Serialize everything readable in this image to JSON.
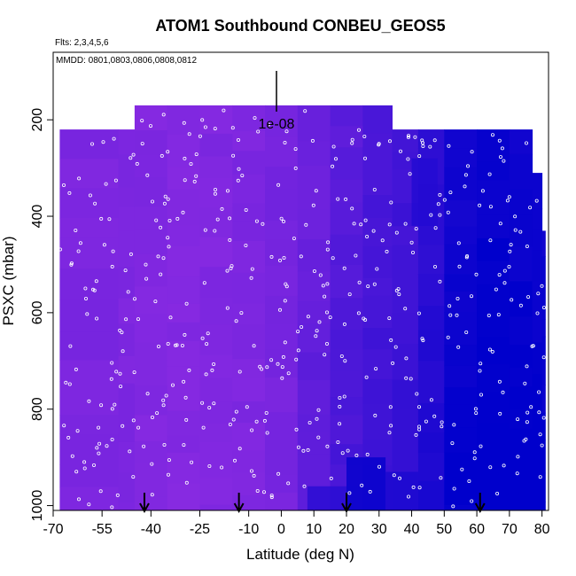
{
  "chart_data": {
    "type": "heatmap",
    "title": "ATOM1 Southbound CONBEU_GEOS5",
    "flights_note": "Flts: 2,3,4,5,6",
    "dates_note": "MMDD: 0801,0803,0806,0808,0812",
    "xlabel": "Latitude (deg N)",
    "ylabel": "PSXC (mbar)",
    "xlim": [
      -70,
      82
    ],
    "ylim": [
      1010,
      60
    ],
    "x_ticks": [
      -70,
      -55,
      -40,
      -25,
      -10,
      0,
      10,
      20,
      30,
      40,
      50,
      60,
      70,
      80
    ],
    "y_ticks": [
      200,
      400,
      600,
      800,
      1000
    ],
    "scale_bar_label": "1e-08",
    "colors": {
      "low": "#0000cc",
      "high": "#8b2be2",
      "points": "#ffffff"
    },
    "columns": [
      {
        "lat0": -68,
        "lat1": -50,
        "ptop": 220,
        "v": 0.88
      },
      {
        "lat0": -50,
        "lat1": -45,
        "ptop": 220,
        "v": 0.9
      },
      {
        "lat0": -45,
        "lat1": -35,
        "ptop": 170,
        "v": 0.92
      },
      {
        "lat0": -35,
        "lat1": -25,
        "ptop": 170,
        "v": 0.93
      },
      {
        "lat0": -25,
        "lat1": -15,
        "ptop": 170,
        "v": 0.92
      },
      {
        "lat0": -15,
        "lat1": -5,
        "ptop": 170,
        "v": 0.9
      },
      {
        "lat0": -5,
        "lat1": 5,
        "ptop": 170,
        "v": 0.85
      },
      {
        "lat0": 5,
        "lat1": 15,
        "ptop": 170,
        "v": 0.78
      },
      {
        "lat0": 15,
        "lat1": 25,
        "ptop": 170,
        "v": 0.65
      },
      {
        "lat0": 25,
        "lat1": 34,
        "ptop": 170,
        "v": 0.55
      },
      {
        "lat0": 34,
        "lat1": 42,
        "ptop": 220,
        "v": 0.5
      },
      {
        "lat0": 42,
        "lat1": 50,
        "ptop": 220,
        "v": 0.35
      },
      {
        "lat0": 50,
        "lat1": 60,
        "ptop": 220,
        "v": 0.15
      },
      {
        "lat0": 60,
        "lat1": 70,
        "ptop": 220,
        "v": 0.08
      },
      {
        "lat0": 70,
        "lat1": 77,
        "ptop": 220,
        "v": 0.1
      },
      {
        "lat0": 77,
        "lat1": 80,
        "ptop": 310,
        "v": 0.12
      },
      {
        "lat0": 80,
        "lat1": 81,
        "ptop": 430,
        "v": 0.15
      }
    ],
    "dark_patches": [
      {
        "lat0": 20,
        "lat1": 32,
        "p0": 900,
        "p1": 1010,
        "v": 0.05
      },
      {
        "lat0": 32,
        "lat1": 42,
        "p0": 930,
        "p1": 1010,
        "v": 0.2
      },
      {
        "lat0": 40,
        "lat1": 48,
        "p0": 280,
        "p1": 420,
        "v": 0.25
      },
      {
        "lat0": 8,
        "lat1": 20,
        "p0": 960,
        "p1": 1010,
        "v": 0.3
      }
    ],
    "profile_arrows_lat": [
      -42,
      -13,
      20,
      61
    ]
  }
}
